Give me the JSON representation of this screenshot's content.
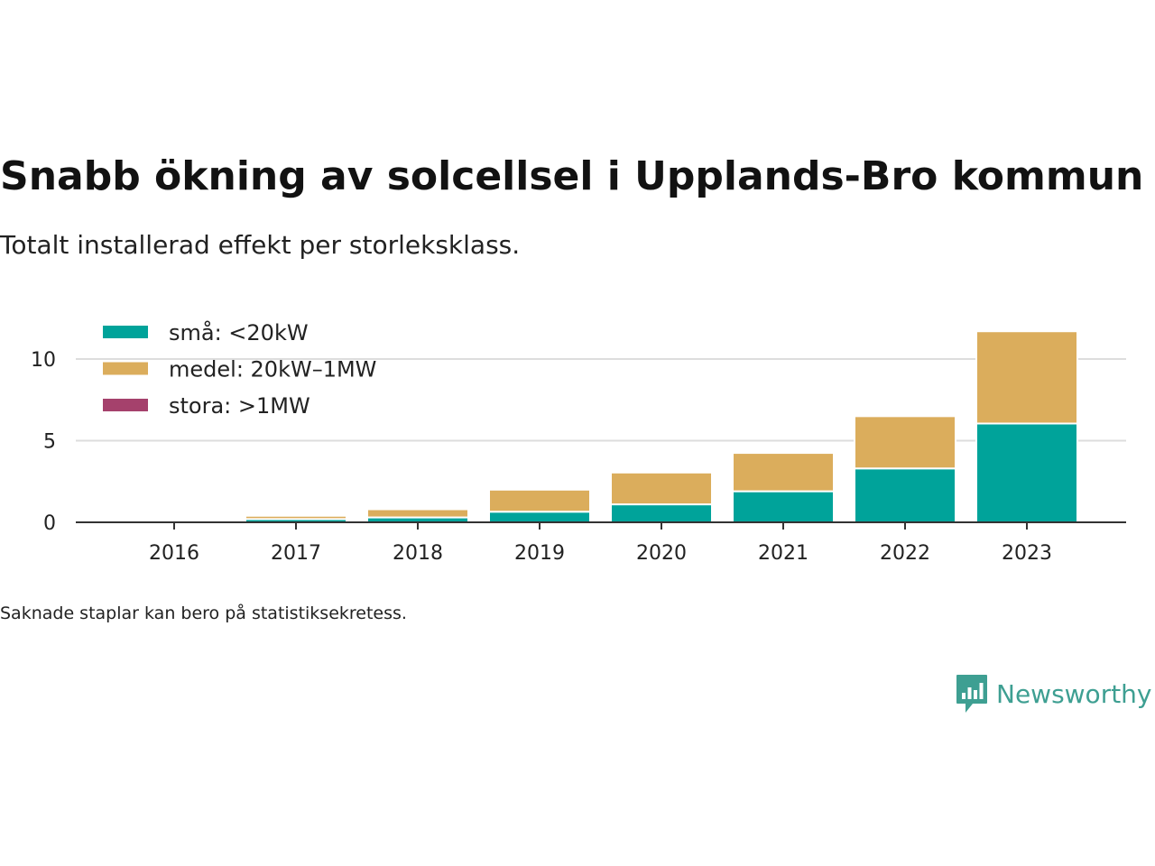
{
  "header": {
    "title": "Snabb ökning av solcellsel i Upplands-Bro kommun",
    "subtitle": "Totalt installerad effekt per storleksklass."
  },
  "footer": {
    "note": "Saknade staplar kan bero på statistiksekretess.",
    "brand": "Newsworthy"
  },
  "colors": {
    "sma": "#00a39a",
    "medel": "#dbad5c",
    "stora": "#a5416c",
    "brand": "#3e9f92"
  },
  "chart_data": {
    "type": "bar",
    "stacked": true,
    "categories": [
      "2016",
      "2017",
      "2018",
      "2019",
      "2020",
      "2021",
      "2022",
      "2023"
    ],
    "series": [
      {
        "name": "små: <20kW",
        "color": "#00a39a",
        "values": [
          0.1,
          0.2,
          0.3,
          0.65,
          1.1,
          1.9,
          3.3,
          6.05
        ]
      },
      {
        "name": "medel: 20kW–1MW",
        "color": "#dbad5c",
        "values": [
          0.1,
          0.2,
          0.5,
          1.35,
          1.95,
          2.35,
          3.2,
          5.65
        ]
      },
      {
        "name": "stora: >1MW",
        "color": "#a5416c",
        "values": [
          0,
          0,
          0,
          0,
          0,
          0,
          0,
          0
        ]
      }
    ],
    "yticks": [
      0,
      5,
      10
    ],
    "ylim": [
      0,
      12
    ],
    "grid": true,
    "legend_position": "top-left"
  }
}
